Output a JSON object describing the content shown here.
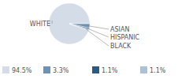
{
  "chart_data": {
    "type": "pie",
    "categories": [
      "WHITE",
      "ASIAN",
      "HISPANIC",
      "BLACK"
    ],
    "values": [
      94.5,
      3.3,
      1.1,
      1.1
    ],
    "value_labels": [
      "94.5%",
      "3.3%",
      "1.1%",
      "1.1%"
    ],
    "colors": [
      "#d3dce7",
      "#6e91b6",
      "#2d5a82",
      "#afc0d4"
    ],
    "legend": "bottom"
  }
}
